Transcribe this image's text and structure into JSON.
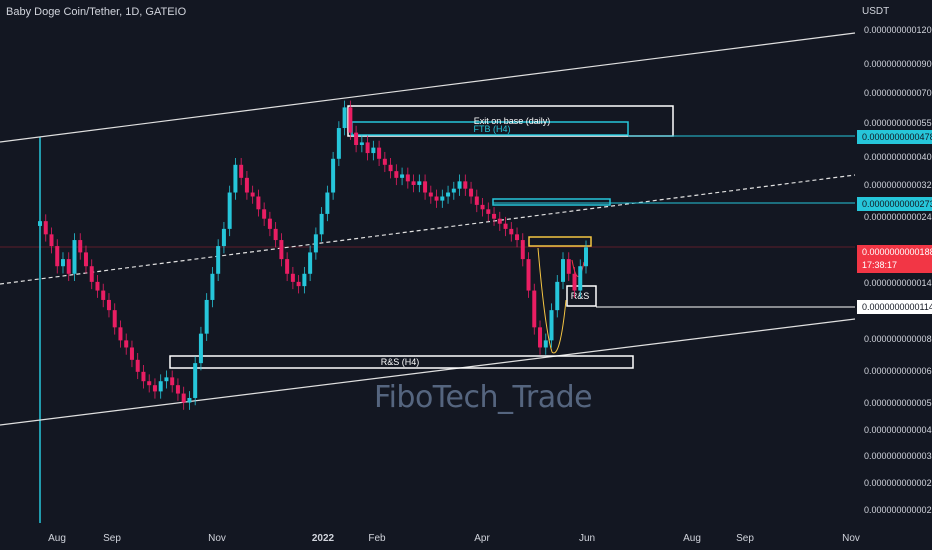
{
  "header": {
    "symbol": "Baby Doge Coin/Tether, 1D, GATEIO",
    "unit": "USDT"
  },
  "watermark": "FiboTech_Trade",
  "chart_data": {
    "type": "candlestick",
    "x_ticks": [
      "Aug",
      "Sep",
      "Nov",
      "2022",
      "Feb",
      "Apr",
      "Jun",
      "Aug",
      "Sep",
      "Nov"
    ],
    "y_ticks": [
      "0.000000000120000",
      "0.000000000090000",
      "0.000000000070000",
      "0.000000000055000",
      "0.000000000040000",
      "0.000000000032000",
      "0.000000000024000",
      "0.000000000018830",
      "0.000000000014000",
      "0.000000000008500",
      "0.000000000006500",
      "0.000000000005000",
      "0.000000000004000",
      "0.000000000003200",
      "0.000000000002500",
      "0.000000000002000"
    ],
    "price_labels": [
      {
        "value": "0.000000000047805",
        "color": "#26c6da"
      },
      {
        "value": "0.000000000027349",
        "color": "#26c6da"
      },
      {
        "value": "0.000000000018830",
        "countdown": "17:38:17",
        "color": "#f23645"
      },
      {
        "value": "0.000000000011447",
        "color": "#ffffff"
      }
    ],
    "annotations": [
      "Exit on base (daily)",
      "FTB (H4)",
      "R&S (H4)",
      "R&S"
    ],
    "scale": "log",
    "colors": {
      "up": "#26c6da",
      "down": "#e91e63",
      "background": "#131722"
    },
    "ohlc_close": [
      2.35e-11,
      2.1e-11,
      1.9e-11,
      1.6e-11,
      1.7e-11,
      1.5e-11,
      2e-11,
      1.8e-11,
      1.6e-11,
      1.4e-11,
      1.3e-11,
      1.2e-11,
      1.1e-11,
      9.5e-12,
      8.5e-12,
      8e-12,
      7.2e-12,
      6.5e-12,
      6e-12,
      5.8e-12,
      5.5e-12,
      6e-12,
      6.2e-12,
      5.8e-12,
      5.4e-12,
      5e-12,
      5.2e-12,
      7e-12,
      9e-12,
      1.2e-11,
      1.5e-11,
      1.9e-11,
      2.2e-11,
      3e-11,
      3.8e-11,
      3.4e-11,
      3e-11,
      2.9e-11,
      2.6e-11,
      2.4e-11,
      2.2e-11,
      2e-11,
      1.7e-11,
      1.5e-11,
      1.4e-11,
      1.35e-11,
      1.5e-11,
      1.8e-11,
      2.1e-11,
      2.5e-11,
      3e-11,
      4e-11,
      5.2e-11,
      6.2e-11,
      5e-11,
      4.5e-11,
      4.6e-11,
      4.2e-11,
      4.4e-11,
      4e-11,
      3.8e-11,
      3.6e-11,
      3.4e-11,
      3.5e-11,
      3.3e-11,
      3.2e-11,
      3.3e-11,
      3e-11,
      2.9e-11,
      2.8e-11,
      2.9e-11,
      3e-11,
      3.1e-11,
      3.3e-11,
      3.1e-11,
      2.9e-11,
      2.7e-11,
      2.6e-11,
      2.5e-11,
      2.4e-11,
      2.3e-11,
      2.2e-11,
      2.1e-11,
      2e-11,
      1.7e-11,
      1.3e-11,
      9.5e-12,
      8e-12,
      8.5e-12,
      1.1e-11,
      1.4e-11,
      1.7e-11,
      1.5e-11,
      1.3e-11,
      1.6e-11,
      1.88e-11
    ]
  }
}
